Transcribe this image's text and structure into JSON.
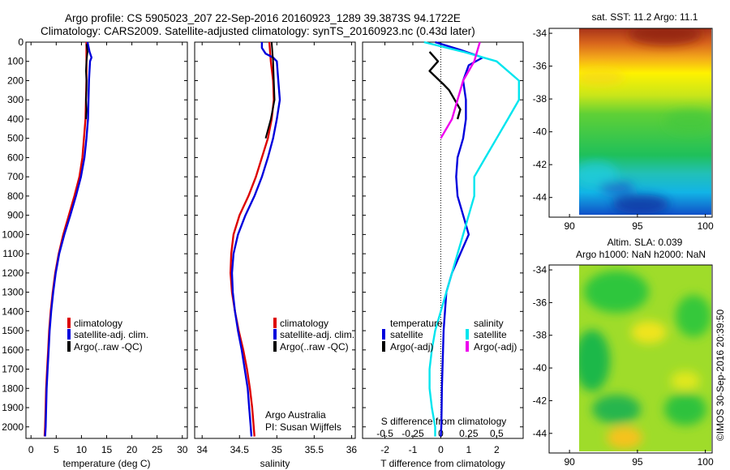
{
  "header": {
    "title_line1": "Argo profile: CS 5905023_207 22-Sep-2016 20160923_1289 39.3873S 94.1722E",
    "title_line2": "Climatology: CARS2009. Satellite-adjusted climatology: synTS_20160923.nc (0.43d later)"
  },
  "footer": {
    "credit": "©IMOS 30-Sep-2016 20:39:50",
    "org_line1": "Argo Australia",
    "org_line2": "PI: Susan Wijffels"
  },
  "colors": {
    "climatology": "#dd0000",
    "satellite": "#0000dd",
    "argo": "#000000",
    "sal_satellite": "#00e5ee",
    "sal_argo": "#ee00ee"
  },
  "chart_data": [
    {
      "id": "temperature",
      "type": "line",
      "xlabel": "temperature (deg C)",
      "ylabel": "",
      "xlim": [
        -1,
        31
      ],
      "ylim": [
        2060,
        0
      ],
      "xticks": [
        0,
        5,
        10,
        15,
        20,
        25,
        30
      ],
      "yticks": [
        0,
        100,
        200,
        300,
        400,
        500,
        600,
        700,
        800,
        900,
        1000,
        1100,
        1200,
        1300,
        1400,
        1500,
        1600,
        1700,
        1800,
        1900,
        2000
      ],
      "legend": {
        "placement": "lower-right",
        "entries": [
          "climatology",
          "satellite-adj. clim.",
          "Argo(..raw -QC)"
        ]
      },
      "series": [
        {
          "name": "climatology",
          "points": [
            [
              11,
              0
            ],
            [
              11,
              100
            ],
            [
              11,
              200
            ],
            [
              10.9,
              300
            ],
            [
              10.8,
              400
            ],
            [
              10.5,
              500
            ],
            [
              10.2,
              600
            ],
            [
              9.6,
              700
            ],
            [
              8.6,
              800
            ],
            [
              7.5,
              900
            ],
            [
              6.4,
              1000
            ],
            [
              5.5,
              1100
            ],
            [
              4.8,
              1200
            ],
            [
              4.3,
              1300
            ],
            [
              3.9,
              1400
            ],
            [
              3.6,
              1500
            ],
            [
              3.4,
              1600
            ],
            [
              3.2,
              1700
            ],
            [
              3.0,
              1800
            ],
            [
              2.9,
              1900
            ],
            [
              2.8,
              2000
            ],
            [
              2.7,
              2050
            ]
          ]
        },
        {
          "name": "satellite-adj. clim.",
          "points": [
            [
              11.2,
              0
            ],
            [
              11.6,
              50
            ],
            [
              12,
              80
            ],
            [
              11.7,
              100
            ],
            [
              11.5,
              200
            ],
            [
              11.4,
              300
            ],
            [
              11.3,
              400
            ],
            [
              11,
              500
            ],
            [
              10.6,
              600
            ],
            [
              9.9,
              700
            ],
            [
              8.9,
              800
            ],
            [
              7.8,
              900
            ],
            [
              6.6,
              1000
            ],
            [
              5.6,
              1100
            ],
            [
              4.9,
              1200
            ],
            [
              4.4,
              1300
            ],
            [
              4.0,
              1400
            ],
            [
              3.7,
              1500
            ],
            [
              3.5,
              1600
            ],
            [
              3.3,
              1700
            ],
            [
              3.1,
              1800
            ],
            [
              3.0,
              1900
            ],
            [
              2.9,
              2000
            ],
            [
              2.8,
              2050
            ]
          ]
        },
        {
          "name": "Argo(..raw -QC)",
          "points": [
            [
              11,
              10
            ],
            [
              11.2,
              50
            ],
            [
              11,
              100
            ],
            [
              10.9,
              150
            ],
            [
              11,
              200
            ],
            [
              11,
              250
            ],
            [
              10.9,
              300
            ],
            [
              11,
              350
            ],
            [
              10.9,
              400
            ]
          ]
        }
      ]
    },
    {
      "id": "salinity",
      "type": "line",
      "xlabel": "salinity",
      "ylabel": "",
      "xlim": [
        33.9,
        36.05
      ],
      "ylim": [
        2060,
        0
      ],
      "xticks": [
        34,
        34.5,
        35,
        35.5,
        36
      ],
      "legend": {
        "placement": "lower-right",
        "entries": [
          "climatology",
          "satellite-adj. clim.",
          "Argo(..raw -QC)"
        ]
      },
      "series": [
        {
          "name": "climatology",
          "points": [
            [
              34.9,
              0
            ],
            [
              34.92,
              100
            ],
            [
              34.95,
              200
            ],
            [
              34.96,
              300
            ],
            [
              34.93,
              400
            ],
            [
              34.88,
              500
            ],
            [
              34.8,
              600
            ],
            [
              34.72,
              700
            ],
            [
              34.62,
              800
            ],
            [
              34.5,
              900
            ],
            [
              34.42,
              1000
            ],
            [
              34.39,
              1100
            ],
            [
              34.38,
              1200
            ],
            [
              34.4,
              1300
            ],
            [
              34.44,
              1400
            ],
            [
              34.49,
              1500
            ],
            [
              34.55,
              1600
            ],
            [
              34.6,
              1700
            ],
            [
              34.64,
              1800
            ],
            [
              34.67,
              1900
            ],
            [
              34.69,
              2000
            ],
            [
              34.7,
              2050
            ]
          ]
        },
        {
          "name": "satellite-adj. clim.",
          "points": [
            [
              34.8,
              0
            ],
            [
              34.8,
              30
            ],
            [
              34.85,
              60
            ],
            [
              34.95,
              80
            ],
            [
              35.0,
              100
            ],
            [
              35.02,
              200
            ],
            [
              35.04,
              300
            ],
            [
              35.0,
              400
            ],
            [
              34.95,
              500
            ],
            [
              34.88,
              600
            ],
            [
              34.8,
              700
            ],
            [
              34.7,
              800
            ],
            [
              34.58,
              900
            ],
            [
              34.48,
              1000
            ],
            [
              34.42,
              1100
            ],
            [
              34.4,
              1200
            ],
            [
              34.41,
              1300
            ],
            [
              34.44,
              1400
            ],
            [
              34.48,
              1500
            ],
            [
              34.53,
              1600
            ],
            [
              34.57,
              1700
            ],
            [
              34.61,
              1800
            ],
            [
              34.63,
              1900
            ],
            [
              34.65,
              2000
            ],
            [
              34.66,
              2050
            ]
          ]
        },
        {
          "name": "Argo(..raw -QC)",
          "points": [
            [
              34.93,
              0
            ],
            [
              34.95,
              100
            ],
            [
              34.96,
              200
            ],
            [
              34.97,
              300
            ],
            [
              34.92,
              400
            ],
            [
              34.85,
              500
            ]
          ]
        }
      ]
    },
    {
      "id": "difference",
      "type": "line",
      "xlabel": "T difference from climatology",
      "xlabel2": "S difference from climatology",
      "xlim": [
        -2.8,
        2.95
      ],
      "ylim": [
        2060,
        0
      ],
      "xticks": [
        -2,
        -1,
        0,
        1,
        2
      ],
      "xticks2_values": [
        -0.5,
        -0.25,
        0,
        0.25,
        0.5
      ],
      "xticks2_labels": [
        "-0.5",
        "-0.25",
        "0",
        "0.25",
        "0.5"
      ],
      "legend": {
        "placement": "lower-right",
        "header_t": "temperature",
        "header_s": "salinity",
        "entries": [
          "satellite",
          "Argo(-adj)",
          "satellite",
          "Argo(-adj)"
        ]
      },
      "series": [
        {
          "name": "satellite",
          "group": "temperature",
          "points": [
            [
              -0.2,
              0
            ],
            [
              0.7,
              40
            ],
            [
              1.5,
              80
            ],
            [
              1.0,
              120
            ],
            [
              0.8,
              200
            ],
            [
              0.9,
              300
            ],
            [
              0.9,
              400
            ],
            [
              0.8,
              500
            ],
            [
              0.6,
              600
            ],
            [
              0.55,
              700
            ],
            [
              0.6,
              800
            ],
            [
              0.8,
              900
            ],
            [
              1.0,
              1000
            ],
            [
              0.7,
              1100
            ],
            [
              0.4,
              1200
            ],
            [
              0.2,
              1300
            ],
            [
              0.15,
              1400
            ],
            [
              0.1,
              1500
            ],
            [
              0.08,
              1600
            ],
            [
              0.06,
              1700
            ],
            [
              0.04,
              1800
            ],
            [
              0.03,
              1900
            ],
            [
              0.02,
              2000
            ],
            [
              0.0,
              2050
            ]
          ]
        },
        {
          "name": "Argo(-adj)",
          "group": "temperature",
          "points": [
            [
              -0.4,
              50
            ],
            [
              -0.1,
              100
            ],
            [
              -0.4,
              150
            ],
            [
              0.1,
              220
            ],
            [
              0.3,
              250
            ],
            [
              0.5,
              300
            ],
            [
              0.7,
              350
            ],
            [
              0.6,
              400
            ]
          ]
        },
        {
          "name": "satellite",
          "group": "salinity",
          "points": [
            [
              -0.15,
              0
            ],
            [
              0.2,
              50
            ],
            [
              0.5,
              100
            ],
            [
              0.7,
              200
            ],
            [
              0.7,
              300
            ],
            [
              0.6,
              400
            ],
            [
              0.5,
              500
            ],
            [
              0.4,
              600
            ],
            [
              0.3,
              700
            ],
            [
              0.3,
              800
            ],
            [
              0.25,
              900
            ],
            [
              0.2,
              1000
            ],
            [
              0.15,
              1100
            ],
            [
              0.1,
              1200
            ],
            [
              0.05,
              1300
            ],
            [
              0.0,
              1400
            ],
            [
              -0.05,
              1500
            ],
            [
              -0.08,
              1600
            ],
            [
              -0.1,
              1700
            ],
            [
              -0.1,
              1800
            ],
            [
              -0.08,
              1900
            ],
            [
              -0.05,
              2000
            ],
            [
              -0.05,
              2050
            ]
          ]
        },
        {
          "name": "Argo(-adj)",
          "group": "salinity",
          "points": [
            [
              0.35,
              0
            ],
            [
              0.3,
              100
            ],
            [
              0.2,
              200
            ],
            [
              0.15,
              300
            ],
            [
              0.1,
              400
            ],
            [
              0.0,
              500
            ]
          ]
        }
      ]
    },
    {
      "id": "sst-map",
      "type": "heatmap",
      "title": "sat. SST: 11.2 Argo: 11.1",
      "xlim": [
        88.5,
        100.5
      ],
      "ylim": [
        -45.2,
        -33.7
      ],
      "xticks": [
        90,
        95,
        100
      ],
      "yticks": [
        -34,
        -36,
        -38,
        -40,
        -42,
        -44
      ],
      "data_extent": {
        "lon": [
          90,
          100
        ],
        "lat": [
          -45,
          -33.8
        ]
      }
    },
    {
      "id": "sla-map",
      "type": "heatmap",
      "title": "Altim. SLA: 0.039",
      "title_line2": "Argo h1000: NaN h2000: NaN",
      "xlim": [
        88.5,
        100.5
      ],
      "ylim": [
        -45.2,
        -33.7
      ],
      "xticks": [
        90,
        95,
        100
      ],
      "yticks": [
        -34,
        -36,
        -38,
        -40,
        -42,
        -44
      ],
      "data_extent": {
        "lon": [
          90,
          100
        ],
        "lat": [
          -45,
          -33.8
        ]
      }
    }
  ]
}
